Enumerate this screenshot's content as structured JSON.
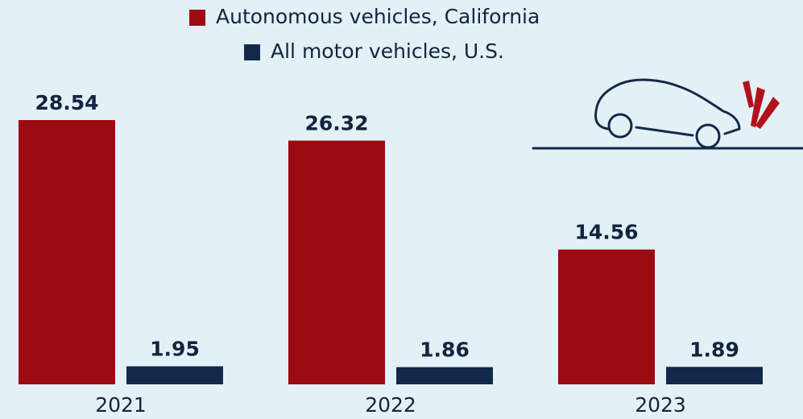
{
  "chart_data": {
    "type": "bar",
    "categories": [
      "2021",
      "2022",
      "2023"
    ],
    "series": [
      {
        "name": "Autonomous vehicles, California",
        "color": "#9c0a12",
        "values": [
          28.54,
          26.32,
          14.56
        ]
      },
      {
        "name": "All motor vehicles, U.S.",
        "color": "#13294b",
        "values": [
          1.95,
          1.86,
          1.89
        ]
      }
    ]
  }
}
